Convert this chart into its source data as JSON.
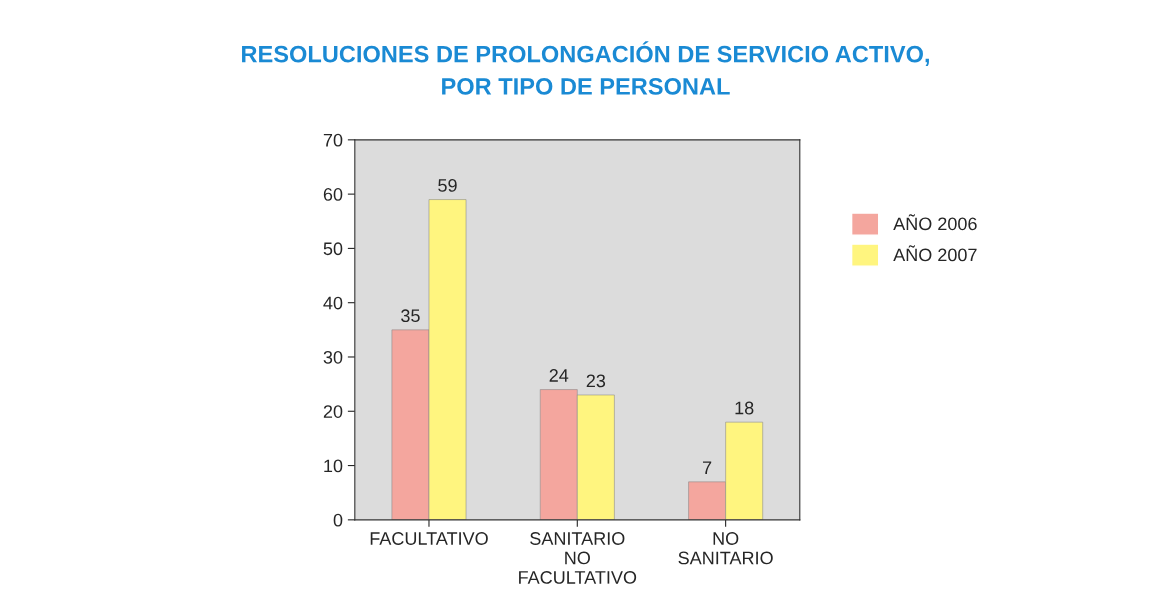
{
  "chart_data": {
    "type": "bar",
    "title": "RESOLUCIONES DE PROLONGACIÓN DE SERVICIO ACTIVO,\nPOR TIPO DE PERSONAL",
    "categories": [
      "FACULTATIVO",
      "SANITARIO\nNO\nFACULTATIVO",
      "NO\nSANITARIO"
    ],
    "series": [
      {
        "name": "AÑO 2006",
        "color": "#f4a69e",
        "values": [
          35,
          24,
          7
        ]
      },
      {
        "name": "AÑO 2007",
        "color": "#fff57f",
        "values": [
          59,
          23,
          18
        ]
      }
    ],
    "ylim": [
      0,
      70
    ],
    "yticks": [
      0,
      10,
      20,
      30,
      40,
      50,
      60,
      70
    ],
    "data_labels": true,
    "grid": false,
    "legend": "right"
  }
}
